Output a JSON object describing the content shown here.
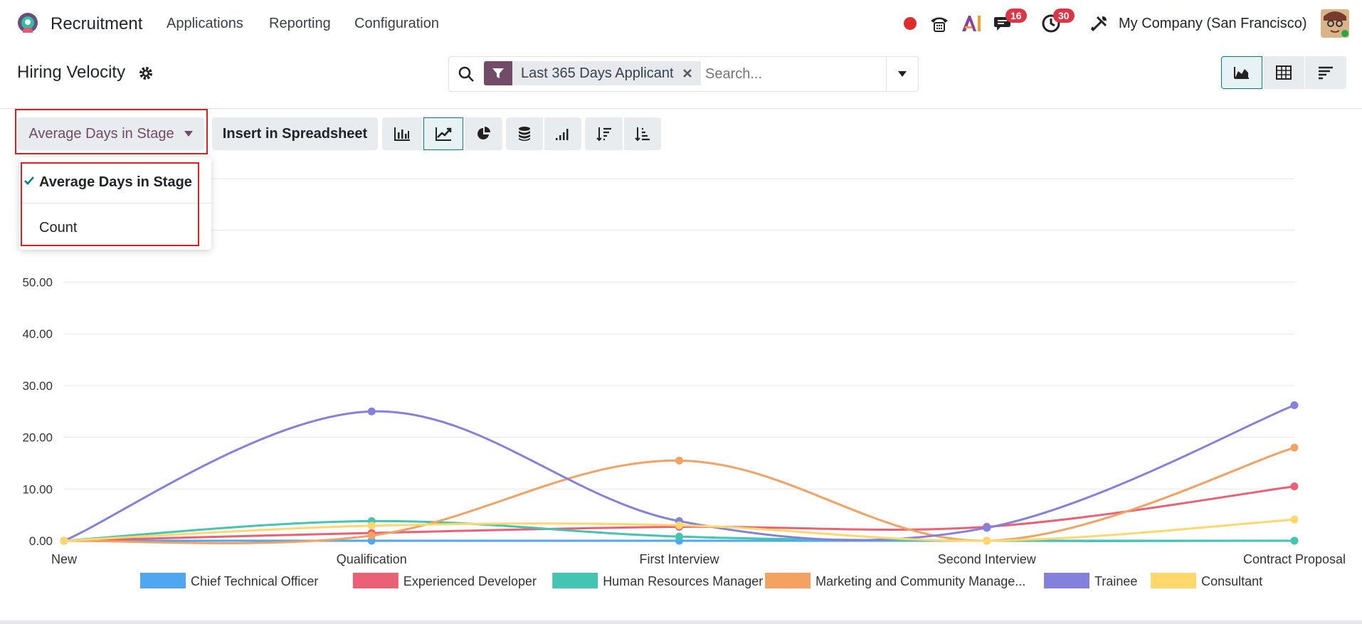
{
  "app": {
    "name": "Recruitment"
  },
  "nav": {
    "items": [
      "Applications",
      "Reporting",
      "Configuration"
    ]
  },
  "systray": {
    "messages_badge": "16",
    "activities_badge": "30",
    "company": "My Company (San Francisco)"
  },
  "page": {
    "title": "Hiring Velocity"
  },
  "search": {
    "facet": "Last 365 Days Applicant",
    "placeholder": "Search..."
  },
  "toolbar": {
    "measure_label": "Average Days in Stage",
    "insert_label": "Insert in Spreadsheet"
  },
  "measure_menu": {
    "items": [
      "Average Days in Stage",
      "Count"
    ],
    "selected": "Average Days in Stage"
  },
  "colors": {
    "brand": "#714b67",
    "accent": "#017e84",
    "highlight": "#e02020"
  },
  "chart_data": {
    "type": "line",
    "categories": [
      "New",
      "Qualification",
      "First Interview",
      "Second Interview",
      "Contract Proposal"
    ],
    "y_ticks": [
      "0.00",
      "10.00",
      "20.00",
      "30.00",
      "40.00",
      "50.00"
    ],
    "ylim": [
      0,
      70
    ],
    "grid": true,
    "legend_position": "bottom",
    "series": [
      {
        "name": "Chief Technical Officer",
        "color": "#4ea7f0",
        "values": [
          0,
          0,
          0,
          0,
          0
        ]
      },
      {
        "name": "Experienced Developer",
        "color": "#ea6175",
        "values": [
          0,
          1.5,
          2.7,
          2.7,
          10.5
        ]
      },
      {
        "name": "Human Resources Manager",
        "color": "#43c5b1",
        "values": [
          0,
          3.8,
          0.8,
          0,
          0
        ]
      },
      {
        "name": "Marketing and Community Manage...",
        "color": "#f4a261",
        "values": [
          0,
          1,
          15.5,
          0,
          18
        ]
      },
      {
        "name": "Trainee",
        "color": "#8481dd",
        "values": [
          0,
          25,
          3.8,
          2.5,
          26.2
        ]
      },
      {
        "name": "Consultant",
        "color": "#ffd86d",
        "values": [
          0,
          2.9,
          3,
          0,
          4.1
        ]
      }
    ]
  }
}
